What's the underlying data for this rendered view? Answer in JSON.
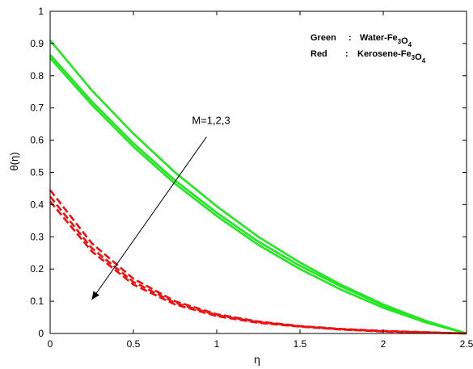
{
  "chart_data": {
    "type": "line",
    "title": "",
    "xlabel": "η",
    "ylabel": "θ(η)",
    "xlim": [
      0,
      2.5
    ],
    "ylim": [
      0,
      1
    ],
    "xticks": [
      "0",
      "0.5",
      "1",
      "1.5",
      "2",
      "2.5"
    ],
    "yticks": [
      "0",
      "0.1",
      "0.2",
      "0.3",
      "0.4",
      "0.5",
      "0.6",
      "0.7",
      "0.8",
      "0.9",
      "1"
    ],
    "grid": false,
    "legend": {
      "placement": "top-right",
      "entries": [
        {
          "name": "Green",
          "sep": ":",
          "parts": [
            [
              "Water-Fe",
              ""
            ],
            [
              "3",
              "sub"
            ],
            [
              "O",
              ""
            ],
            [
              "4",
              "sub"
            ]
          ]
        },
        {
          "name": "Red",
          "sep": ":",
          "parts": [
            [
              "Kerosene-Fe",
              ""
            ],
            [
              "3",
              "sub"
            ],
            [
              "O",
              ""
            ],
            [
              "4",
              "sub"
            ]
          ]
        }
      ]
    },
    "annotation": {
      "text": "M=1,2,3",
      "arrow_from": [
        0.9,
        0.6
      ],
      "arrow_to": [
        0.25,
        0.12
      ]
    },
    "colors": {
      "green": "#22e622",
      "red": "#ee1111"
    },
    "series": [
      {
        "color": "green",
        "style": "solid",
        "x": [
          0,
          0.25,
          0.5,
          0.75,
          1,
          1.25,
          1.5,
          1.75,
          2,
          2.25,
          2.5
        ],
        "values": [
          0.91,
          0.755,
          0.62,
          0.5,
          0.395,
          0.3,
          0.22,
          0.15,
          0.09,
          0.04,
          0.0
        ]
      },
      {
        "color": "green",
        "style": "solid",
        "x": [
          0,
          0.25,
          0.5,
          0.75,
          1,
          1.25,
          1.5,
          1.75,
          2,
          2.25,
          2.5
        ],
        "values": [
          0.865,
          0.72,
          0.59,
          0.475,
          0.375,
          0.285,
          0.21,
          0.145,
          0.087,
          0.038,
          0.0
        ]
      },
      {
        "color": "green",
        "style": "solid",
        "x": [
          0,
          0.25,
          0.5,
          0.75,
          1,
          1.25,
          1.5,
          1.75,
          2,
          2.25,
          2.5
        ],
        "values": [
          0.855,
          0.71,
          0.58,
          0.465,
          0.365,
          0.275,
          0.2,
          0.135,
          0.08,
          0.035,
          0.0
        ]
      },
      {
        "color": "red",
        "style": "dashed",
        "x": [
          0,
          0.25,
          0.5,
          0.75,
          1,
          1.25,
          1.5,
          1.75,
          2,
          2.25,
          2.5
        ],
        "values": [
          0.445,
          0.28,
          0.17,
          0.1,
          0.06,
          0.037,
          0.023,
          0.014,
          0.008,
          0.004,
          0.0
        ]
      },
      {
        "color": "red",
        "style": "dashed",
        "x": [
          0,
          0.25,
          0.5,
          0.75,
          1,
          1.25,
          1.5,
          1.75,
          2,
          2.25,
          2.5
        ],
        "values": [
          0.425,
          0.265,
          0.16,
          0.095,
          0.057,
          0.035,
          0.022,
          0.013,
          0.007,
          0.003,
          0.0
        ]
      },
      {
        "color": "red",
        "style": "dashed",
        "x": [
          0,
          0.25,
          0.5,
          0.75,
          1,
          1.25,
          1.5,
          1.75,
          2,
          2.25,
          2.5
        ],
        "values": [
          0.41,
          0.255,
          0.152,
          0.09,
          0.054,
          0.033,
          0.021,
          0.012,
          0.006,
          0.003,
          0.0
        ]
      }
    ]
  }
}
